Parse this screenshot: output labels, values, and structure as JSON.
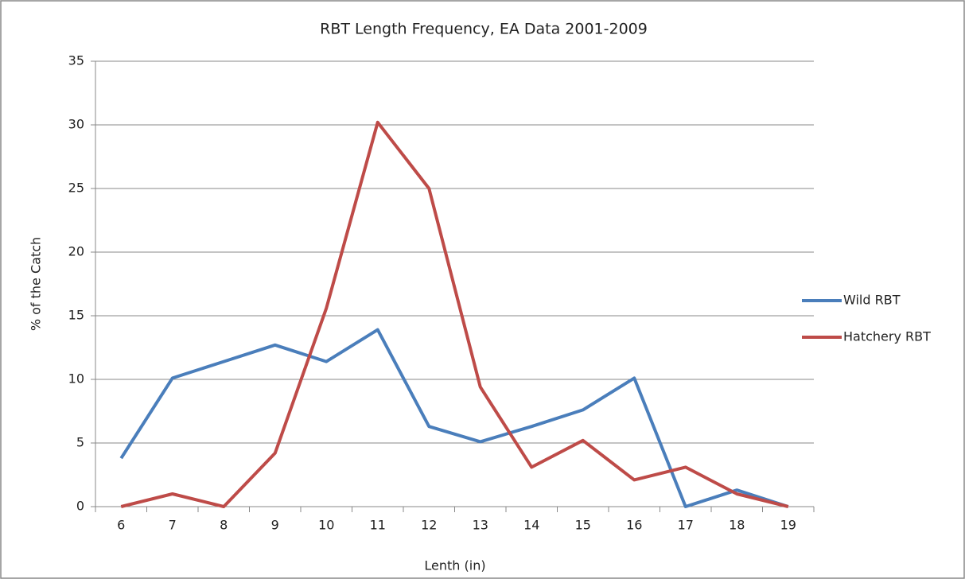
{
  "chart_data": {
    "type": "line",
    "title": "RBT Length Frequency, EA Data 2001-2009",
    "x_label": "Lenth (in)",
    "y_label": "% of the Catch",
    "categories": [
      "6",
      "7",
      "8",
      "9",
      "10",
      "11",
      "12",
      "13",
      "14",
      "15",
      "16",
      "17",
      "18",
      "19"
    ],
    "series": [
      {
        "name": "Wild RBT",
        "color": "#4a7ebb",
        "values": [
          3.8,
          10.1,
          11.4,
          12.7,
          11.4,
          13.9,
          6.3,
          5.1,
          6.3,
          7.6,
          10.1,
          0,
          1.3,
          0
        ]
      },
      {
        "name": "Hatchery RBT",
        "color": "#be4b48",
        "values": [
          0,
          1.0,
          0,
          4.2,
          15.6,
          30.2,
          25.0,
          9.4,
          3.1,
          5.2,
          2.1,
          3.1,
          1.0,
          0
        ]
      }
    ],
    "ylim": [
      0,
      35
    ],
    "yticks": [
      0,
      5,
      10,
      15,
      20,
      25,
      30,
      35
    ],
    "grid": true,
    "legend": "right"
  }
}
